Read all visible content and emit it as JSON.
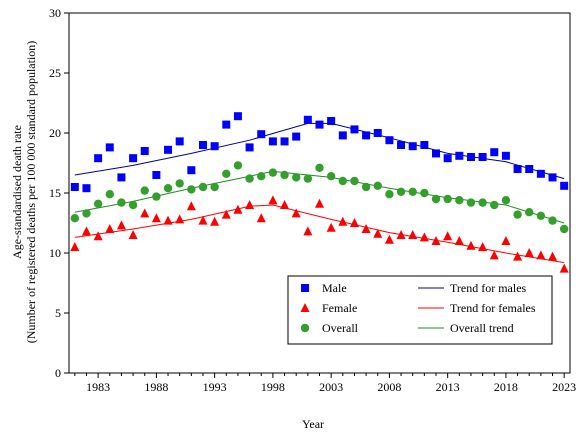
{
  "chart_data": {
    "type": "scatter",
    "title": "",
    "xlabel": "Year",
    "ylabel_line1": "Age-standardised death rate",
    "ylabel_line2": "(Number of registered deaths per 100 000 standard population)",
    "xlim": [
      1980.5,
      2023.5
    ],
    "ylim": [
      0,
      30
    ],
    "yticks": [
      0,
      5,
      10,
      15,
      20,
      25,
      30
    ],
    "xticks": [
      1983,
      1988,
      1993,
      1998,
      2003,
      2008,
      2013,
      2018,
      2023
    ],
    "grid": false,
    "legend_position": "bottom-right",
    "series": [
      {
        "name": "Male",
        "marker": "square",
        "color": "#0000FF",
        "x": [
          1981,
          1982,
          1983,
          1984,
          1985,
          1986,
          1987,
          1988,
          1989,
          1990,
          1991,
          1992,
          1993,
          1994,
          1995,
          1996,
          1997,
          1998,
          1999,
          2000,
          2001,
          2002,
          2003,
          2004,
          2005,
          2006,
          2007,
          2008,
          2009,
          2010,
          2011,
          2012,
          2013,
          2014,
          2015,
          2016,
          2017,
          2018,
          2019,
          2020,
          2021,
          2022,
          2023
        ],
        "y": [
          15.5,
          15.4,
          17.9,
          18.8,
          16.3,
          17.9,
          18.5,
          16.5,
          18.6,
          19.3,
          16.9,
          19.0,
          18.9,
          20.7,
          21.4,
          18.8,
          19.9,
          19.3,
          19.3,
          19.7,
          21.1,
          20.7,
          21.0,
          19.8,
          20.3,
          19.8,
          20.0,
          19.4,
          19.0,
          18.9,
          19.0,
          18.3,
          17.9,
          18.1,
          18.0,
          18.0,
          18.4,
          18.1,
          17.0,
          17.0,
          16.6,
          16.3,
          15.6
        ]
      },
      {
        "name": "Female",
        "marker": "triangle",
        "color": "#FF0000",
        "x": [
          1981,
          1982,
          1983,
          1984,
          1985,
          1986,
          1987,
          1988,
          1989,
          1990,
          1991,
          1992,
          1993,
          1994,
          1995,
          1996,
          1997,
          1998,
          1999,
          2000,
          2001,
          2002,
          2003,
          2004,
          2005,
          2006,
          2007,
          2008,
          2009,
          2010,
          2011,
          2012,
          2013,
          2014,
          2015,
          2016,
          2017,
          2018,
          2019,
          2020,
          2021,
          2022,
          2023
        ],
        "y": [
          10.5,
          11.8,
          11.4,
          12.0,
          12.3,
          11.5,
          13.3,
          12.9,
          12.7,
          12.8,
          13.9,
          12.7,
          12.6,
          13.2,
          13.6,
          14.0,
          12.9,
          14.4,
          14.0,
          13.3,
          11.8,
          14.1,
          12.1,
          12.6,
          12.5,
          12.0,
          11.6,
          11.1,
          11.5,
          11.5,
          11.3,
          11.0,
          11.4,
          11.0,
          10.6,
          10.5,
          9.8,
          11.0,
          9.7,
          10.0,
          9.8,
          9.7,
          8.7
        ]
      },
      {
        "name": "Overall",
        "marker": "circle",
        "color": "#33A02C",
        "x": [
          1981,
          1982,
          1983,
          1984,
          1985,
          1986,
          1987,
          1988,
          1989,
          1990,
          1991,
          1992,
          1993,
          1994,
          1995,
          1996,
          1997,
          1998,
          1999,
          2000,
          2001,
          2002,
          2003,
          2004,
          2005,
          2006,
          2007,
          2008,
          2009,
          2010,
          2011,
          2012,
          2013,
          2014,
          2015,
          2016,
          2017,
          2018,
          2019,
          2020,
          2021,
          2022,
          2023
        ],
        "y": [
          12.9,
          13.3,
          14.1,
          14.9,
          14.2,
          14.0,
          15.2,
          14.7,
          15.4,
          15.8,
          15.3,
          15.5,
          15.5,
          16.6,
          17.3,
          16.2,
          16.4,
          16.7,
          16.5,
          16.3,
          16.2,
          17.1,
          16.4,
          16.0,
          16.0,
          15.5,
          15.6,
          14.9,
          15.1,
          15.1,
          15.0,
          14.5,
          14.5,
          14.4,
          14.2,
          14.2,
          14.0,
          14.4,
          13.2,
          13.4,
          13.1,
          12.7,
          12.0
        ]
      }
    ],
    "trends": [
      {
        "name": "Trend for males",
        "color": "#00008B",
        "points": [
          [
            1981,
            16.5
          ],
          [
            1986,
            17.3
          ],
          [
            1991,
            18.3
          ],
          [
            1996,
            19.4
          ],
          [
            2001,
            20.8
          ],
          [
            2003,
            20.8
          ],
          [
            2008,
            19.6
          ],
          [
            2013,
            18.3
          ],
          [
            2018,
            17.6
          ],
          [
            2023,
            16.2
          ]
        ]
      },
      {
        "name": "Trend for females",
        "color": "#FF0000",
        "points": [
          [
            1981,
            11.3
          ],
          [
            1986,
            12.0
          ],
          [
            1991,
            12.8
          ],
          [
            1996,
            13.9
          ],
          [
            1998,
            14.0
          ],
          [
            2003,
            12.8
          ],
          [
            2008,
            11.7
          ],
          [
            2013,
            10.9
          ],
          [
            2018,
            10.0
          ],
          [
            2023,
            9.2
          ]
        ]
      },
      {
        "name": "Overall trend",
        "color": "#228B22",
        "points": [
          [
            1981,
            13.4
          ],
          [
            1986,
            14.3
          ],
          [
            1991,
            15.4
          ],
          [
            1996,
            16.4
          ],
          [
            1998,
            16.8
          ],
          [
            2003,
            16.3
          ],
          [
            2008,
            15.4
          ],
          [
            2013,
            14.6
          ],
          [
            2018,
            14.0
          ],
          [
            2023,
            12.5
          ]
        ]
      }
    ]
  }
}
